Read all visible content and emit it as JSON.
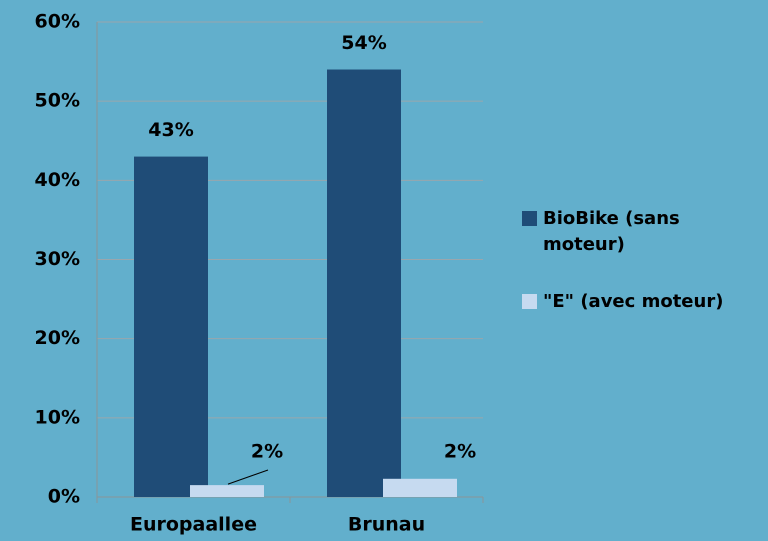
{
  "chart_data": {
    "type": "bar",
    "categories": [
      "Europaallee",
      "Brunau"
    ],
    "series": [
      {
        "name": "BioBike (sans moteur)",
        "color": "#1f4c77",
        "values": [
          43,
          54
        ],
        "value_labels": [
          "43%",
          "54%"
        ]
      },
      {
        "name": "\"E\" (avec moteur)",
        "color": "#c6daf0",
        "values": [
          1.5,
          2.3
        ],
        "value_labels": [
          "2%",
          "2%"
        ]
      }
    ],
    "ylim": [
      0,
      60
    ],
    "yticks": [
      {
        "value": 0,
        "label": "0%"
      },
      {
        "value": 10,
        "label": "10%"
      },
      {
        "value": 20,
        "label": "20%"
      },
      {
        "value": 30,
        "label": "30%"
      },
      {
        "value": 40,
        "label": "40%"
      },
      {
        "value": 50,
        "label": "50%"
      },
      {
        "value": 60,
        "label": "60%"
      }
    ],
    "grid": true,
    "legend": "right"
  }
}
